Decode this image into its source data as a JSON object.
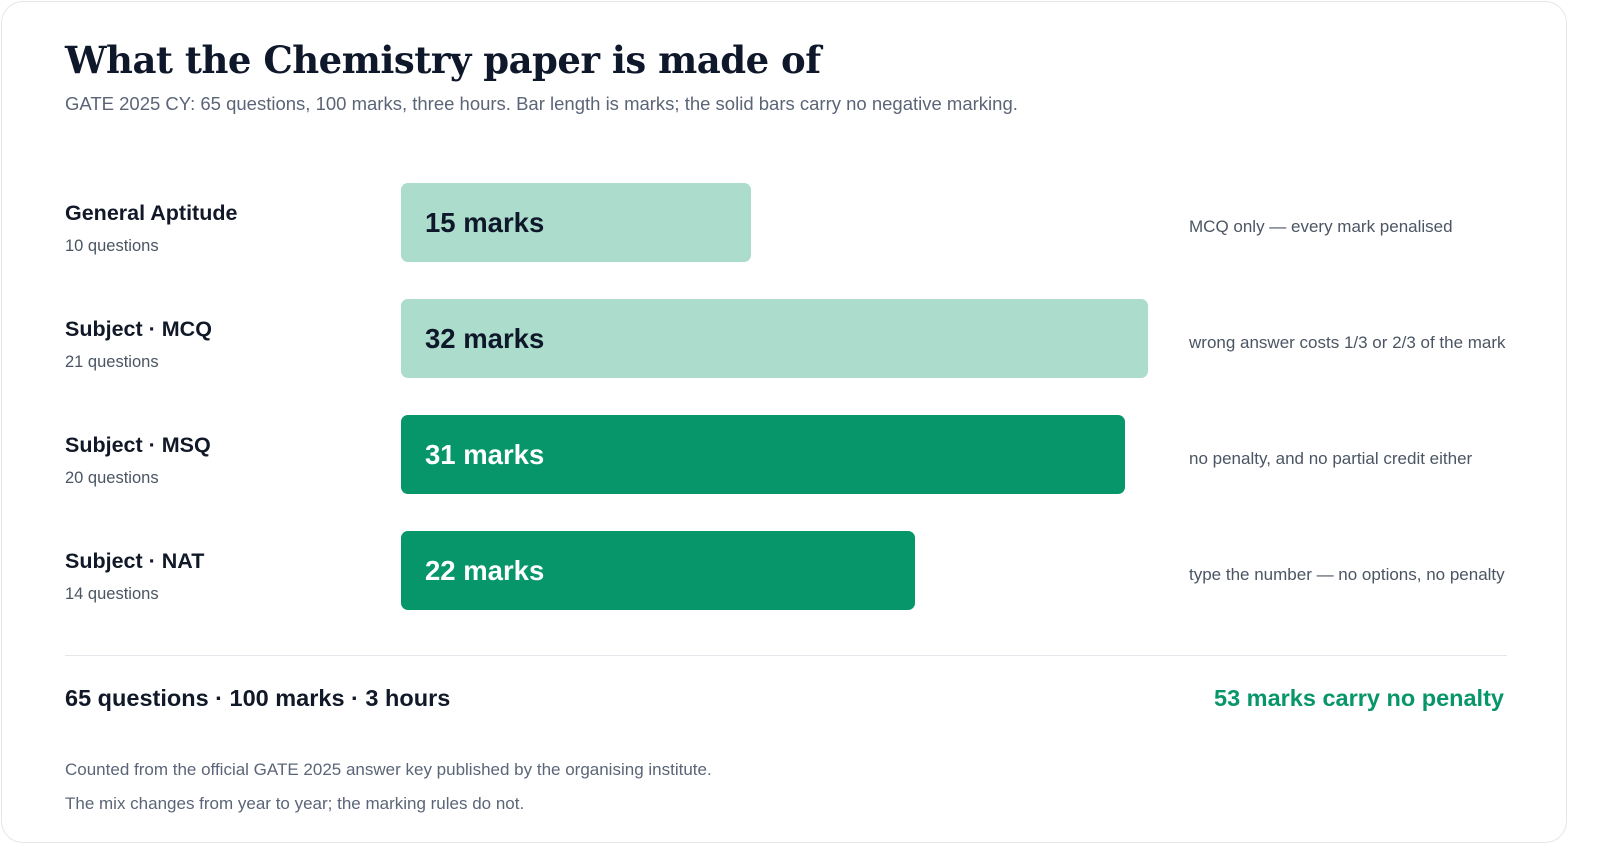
{
  "header": {
    "title": "What the Chemistry paper is made of",
    "subtitle": "GATE 2025 CY: 65 questions, 100 marks, three hours. Bar length is marks; the solid bars carry no negative marking."
  },
  "colors": {
    "penalised_bar": "#acdccb",
    "no_penalty_bar": "#069669",
    "accent": "#069669"
  },
  "chart_data": {
    "type": "bar",
    "orientation": "horizontal",
    "value_unit": "marks",
    "categories": [
      "General Aptitude",
      "Subject · MCQ",
      "Subject · MSQ",
      "Subject · NAT"
    ],
    "values": [
      15,
      32,
      31,
      22
    ],
    "value_labels": [
      "15 marks",
      "32 marks",
      "31 marks",
      "22 marks"
    ],
    "question_counts": [
      "10 questions",
      "21 questions",
      "20 questions",
      "14 questions"
    ],
    "no_negative_marking": [
      false,
      false,
      true,
      true
    ],
    "notes": [
      "MCQ only — every mark penalised",
      "wrong answer costs 1/3 or 2/3 of the mark",
      "no penalty, and no partial credit either",
      "type the number — no options, no penalty"
    ],
    "xlim": [
      0,
      32
    ],
    "grid": false,
    "legend": "none"
  },
  "summary": {
    "totals": "65 questions · 100 marks · 3 hours",
    "no_penalty": "53 marks carry no penalty"
  },
  "footnotes": [
    "Counted from the official GATE 2025 answer key published by the organising institute.",
    "The mix changes from year to year; the marking rules do not."
  ]
}
